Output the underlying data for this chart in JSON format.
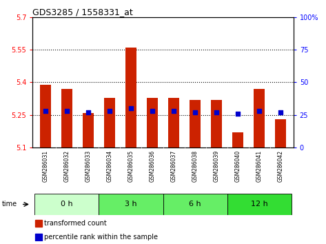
{
  "title": "GDS3285 / 1558331_at",
  "samples": [
    "GSM286031",
    "GSM286032",
    "GSM286033",
    "GSM286034",
    "GSM286035",
    "GSM286036",
    "GSM286037",
    "GSM286038",
    "GSM286039",
    "GSM286040",
    "GSM286041",
    "GSM286042"
  ],
  "red_values": [
    5.39,
    5.37,
    5.26,
    5.33,
    5.56,
    5.33,
    5.33,
    5.32,
    5.32,
    5.17,
    5.37,
    5.23
  ],
  "blue_values": [
    28,
    28,
    27,
    28,
    30,
    28,
    28,
    27,
    27,
    26,
    28,
    27
  ],
  "groups": [
    {
      "label": "0 h",
      "start": 0,
      "end": 3,
      "color": "#ccffcc"
    },
    {
      "label": "3 h",
      "start": 3,
      "end": 6,
      "color": "#66ee66"
    },
    {
      "label": "6 h",
      "start": 6,
      "end": 9,
      "color": "#66ee66"
    },
    {
      "label": "12 h",
      "start": 9,
      "end": 12,
      "color": "#33dd33"
    }
  ],
  "ylim_left": [
    5.1,
    5.7
  ],
  "yticks_left": [
    5.1,
    5.25,
    5.4,
    5.55,
    5.7
  ],
  "ytick_labels_left": [
    "5.1",
    "5.25",
    "5.4",
    "5.55",
    "5.7"
  ],
  "ylim_right": [
    0,
    100
  ],
  "yticks_right": [
    0,
    25,
    50,
    75,
    100
  ],
  "ytick_labels_right": [
    "0",
    "25",
    "50",
    "75",
    "100%"
  ],
  "hlines": [
    5.25,
    5.4,
    5.55
  ],
  "bar_color": "#cc2200",
  "dot_color": "#0000cc",
  "bar_bottom": 5.1,
  "bar_width": 0.5,
  "dot_size": 20,
  "fig_width": 4.73,
  "fig_height": 3.54,
  "dpi": 100
}
